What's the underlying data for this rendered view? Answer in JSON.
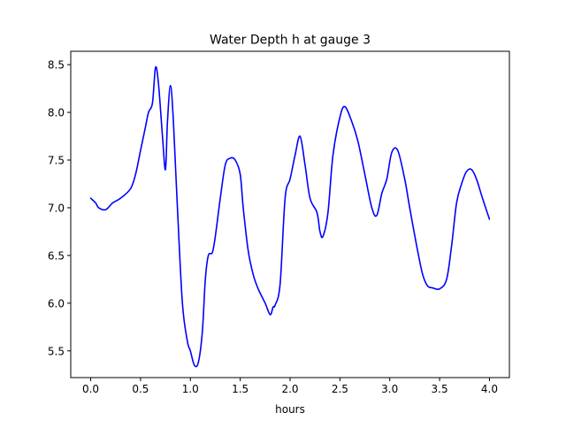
{
  "chart_data": {
    "type": "line",
    "title": "Water Depth h at gauge 3",
    "xlabel": "hours",
    "ylabel": "",
    "xlim": [
      -0.2,
      4.2
    ],
    "ylim": [
      5.22,
      8.64
    ],
    "xticks": [
      0.0,
      0.5,
      1.0,
      1.5,
      2.0,
      2.5,
      3.0,
      3.5,
      4.0
    ],
    "xtick_labels": [
      "0.0",
      "0.5",
      "1.0",
      "1.5",
      "2.0",
      "2.5",
      "3.0",
      "3.5",
      "4.0"
    ],
    "yticks": [
      5.5,
      6.0,
      6.5,
      7.0,
      7.5,
      8.0,
      8.5
    ],
    "ytick_labels": [
      "5.5",
      "6.0",
      "6.5",
      "7.0",
      "7.5",
      "8.0",
      "8.5"
    ],
    "grid": false,
    "series": [
      {
        "color": "#0000ff",
        "x": [
          0.0,
          0.05,
          0.08,
          0.15,
          0.22,
          0.3,
          0.4,
          0.45,
          0.5,
          0.55,
          0.58,
          0.62,
          0.65,
          0.68,
          0.72,
          0.75,
          0.77,
          0.8,
          0.83,
          0.87,
          0.92,
          0.97,
          1.0,
          1.04,
          1.08,
          1.12,
          1.15,
          1.18,
          1.22,
          1.25,
          1.3,
          1.35,
          1.4,
          1.45,
          1.5,
          1.53,
          1.58,
          1.63,
          1.68,
          1.75,
          1.8,
          1.83,
          1.85,
          1.9,
          1.95,
          2.0,
          2.05,
          2.1,
          2.15,
          2.2,
          2.27,
          2.3,
          2.33,
          2.38,
          2.43,
          2.5,
          2.55,
          2.62,
          2.68,
          2.75,
          2.82,
          2.87,
          2.92,
          2.97,
          3.02,
          3.08,
          3.15,
          3.2,
          3.27,
          3.33,
          3.38,
          3.43,
          3.5,
          3.57,
          3.62,
          3.67,
          3.72,
          3.77,
          3.82,
          3.87,
          3.93,
          4.0
        ],
        "y": [
          7.1,
          7.05,
          7.0,
          6.98,
          7.05,
          7.1,
          7.2,
          7.35,
          7.6,
          7.85,
          8.0,
          8.1,
          8.47,
          8.3,
          7.75,
          7.4,
          7.9,
          8.28,
          7.9,
          7.0,
          6.0,
          5.6,
          5.5,
          5.35,
          5.38,
          5.7,
          6.25,
          6.5,
          6.53,
          6.7,
          7.1,
          7.45,
          7.52,
          7.5,
          7.35,
          7.0,
          6.55,
          6.3,
          6.15,
          6.0,
          5.88,
          5.96,
          5.98,
          6.2,
          7.1,
          7.3,
          7.55,
          7.75,
          7.45,
          7.1,
          6.95,
          6.75,
          6.7,
          6.95,
          7.55,
          7.95,
          8.06,
          7.9,
          7.7,
          7.35,
          7.0,
          6.92,
          7.15,
          7.3,
          7.58,
          7.6,
          7.3,
          7.0,
          6.6,
          6.3,
          6.18,
          6.16,
          6.15,
          6.25,
          6.6,
          7.05,
          7.25,
          7.38,
          7.4,
          7.3,
          7.1,
          6.88
        ]
      }
    ]
  }
}
